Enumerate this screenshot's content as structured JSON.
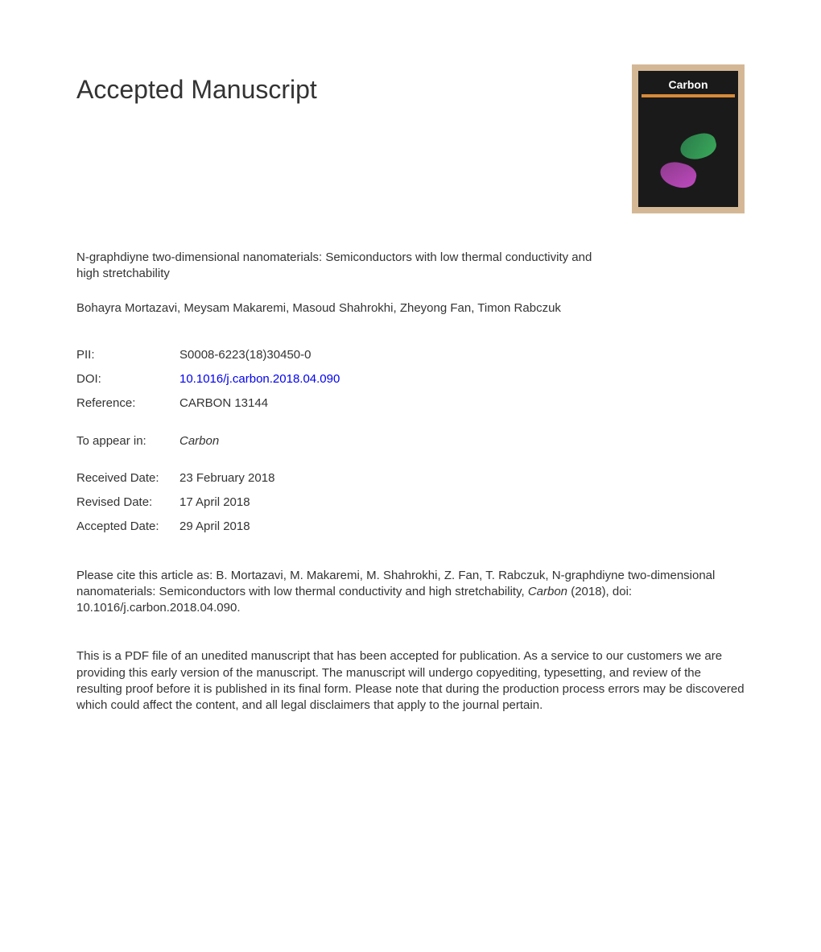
{
  "heading": "Accepted Manuscript",
  "journal_cover": {
    "title": "Carbon"
  },
  "article": {
    "title": "N-graphdiyne two-dimensional nanomaterials: Semiconductors with low thermal conductivity and high stretchability",
    "authors": "Bohayra Mortazavi, Meysam Makaremi, Masoud Shahrokhi, Zheyong Fan, Timon Rabczuk"
  },
  "meta": {
    "pii_label": "PII:",
    "pii_value": "S0008-6223(18)30450-0",
    "doi_label": "DOI:",
    "doi_value": "10.1016/j.carbon.2018.04.090",
    "reference_label": "Reference:",
    "reference_value": "CARBON 13144",
    "appear_label": "To appear in:",
    "appear_value": "Carbon",
    "received_label": "Received Date:",
    "received_value": "23 February 2018",
    "revised_label": "Revised Date:",
    "revised_value": "17 April 2018",
    "accepted_label": "Accepted Date:",
    "accepted_value": "29 April 2018"
  },
  "citation": {
    "prefix": "Please cite this article as: B. Mortazavi, M. Makaremi, M. Shahrokhi, Z. Fan, T. Rabczuk, N-graphdiyne two-dimensional nanomaterials: Semiconductors with low thermal conductivity and high stretchability, ",
    "journal": "Carbon",
    "suffix": " (2018), doi: 10.1016/j.carbon.2018.04.090."
  },
  "disclaimer": "This is a PDF file of an unedited manuscript that has been accepted for publication. As a service to our customers we are providing this early version of the manuscript. The manuscript will undergo copyediting, typesetting, and review of the resulting proof before it is published in its final form. Please note that during the production process errors may be discovered which could affect the content, and all legal disclaimers that apply to the journal pertain."
}
